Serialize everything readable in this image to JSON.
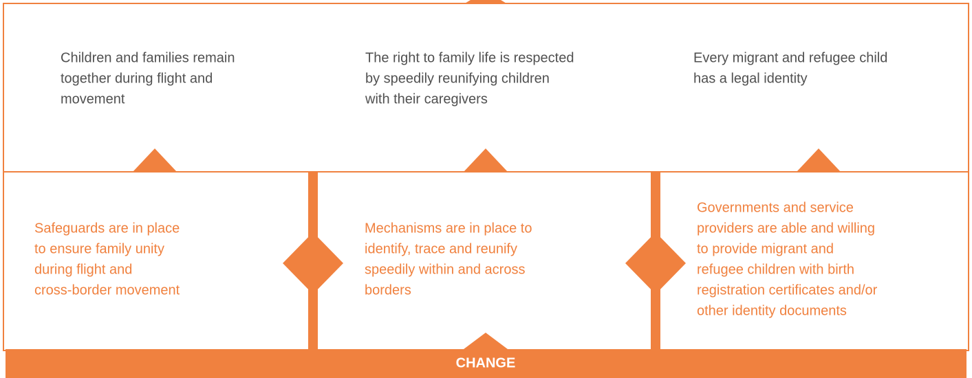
{
  "outcomes": [
    {
      "lines": [
        "Children and families remain",
        "together during flight and",
        "movement"
      ]
    },
    {
      "lines": [
        "The right to family life is respected",
        "by speedily reunifying children",
        "with their caregivers"
      ]
    },
    {
      "lines": [
        "Every migrant and refugee child",
        "has a legal identity"
      ]
    }
  ],
  "outputs": [
    {
      "lines": [
        "Safeguards are in place",
        "to ensure family unity",
        "during flight and",
        "cross-border movement"
      ]
    },
    {
      "lines": [
        "Mechanisms are in place to",
        "identify, trace and reunify",
        "speedily within and across",
        "borders"
      ]
    },
    {
      "lines": [
        "Governments and service",
        "providers are able and willing",
        "to provide migrant and",
        "refugee children with birth",
        "registration certificates and/or",
        "other identity documents"
      ]
    }
  ],
  "footer": {
    "label": "CHANGE"
  }
}
